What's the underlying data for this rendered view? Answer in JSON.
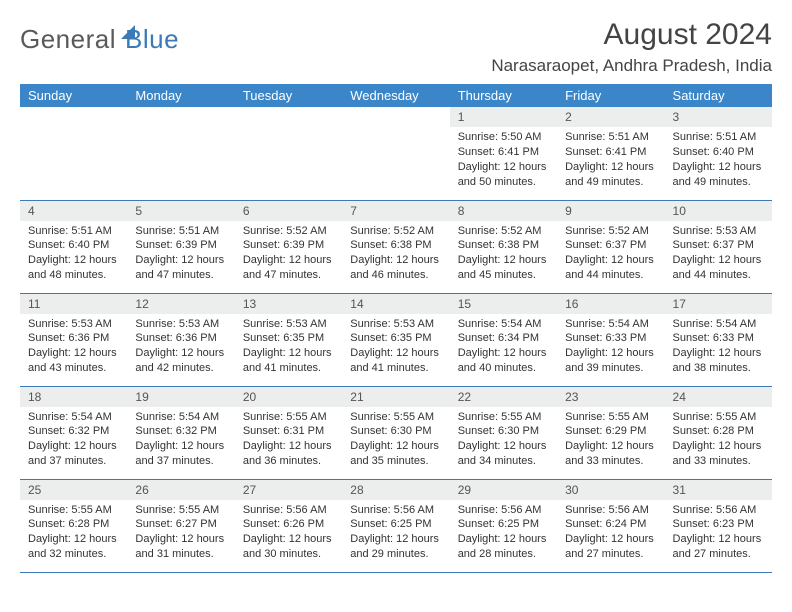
{
  "brand": {
    "part1": "General",
    "part2": "Blue"
  },
  "header": {
    "title": "August 2024",
    "location": "Narasaraopet, Andhra Pradesh, India"
  },
  "colors": {
    "accent": "#3a86c8",
    "accent_dark": "#3a7ab8",
    "daynum_bg": "#eceded",
    "text": "#333333"
  },
  "weekdays": [
    "Sunday",
    "Monday",
    "Tuesday",
    "Wednesday",
    "Thursday",
    "Friday",
    "Saturday"
  ],
  "grid": [
    [
      null,
      null,
      null,
      null,
      {
        "n": "1",
        "sr": "5:50 AM",
        "ss": "6:41 PM",
        "dlA": "12 hours",
        "dlB": "and 50 minutes."
      },
      {
        "n": "2",
        "sr": "5:51 AM",
        "ss": "6:41 PM",
        "dlA": "12 hours",
        "dlB": "and 49 minutes."
      },
      {
        "n": "3",
        "sr": "5:51 AM",
        "ss": "6:40 PM",
        "dlA": "12 hours",
        "dlB": "and 49 minutes."
      }
    ],
    [
      {
        "n": "4",
        "sr": "5:51 AM",
        "ss": "6:40 PM",
        "dlA": "12 hours",
        "dlB": "and 48 minutes."
      },
      {
        "n": "5",
        "sr": "5:51 AM",
        "ss": "6:39 PM",
        "dlA": "12 hours",
        "dlB": "and 47 minutes."
      },
      {
        "n": "6",
        "sr": "5:52 AM",
        "ss": "6:39 PM",
        "dlA": "12 hours",
        "dlB": "and 47 minutes."
      },
      {
        "n": "7",
        "sr": "5:52 AM",
        "ss": "6:38 PM",
        "dlA": "12 hours",
        "dlB": "and 46 minutes."
      },
      {
        "n": "8",
        "sr": "5:52 AM",
        "ss": "6:38 PM",
        "dlA": "12 hours",
        "dlB": "and 45 minutes."
      },
      {
        "n": "9",
        "sr": "5:52 AM",
        "ss": "6:37 PM",
        "dlA": "12 hours",
        "dlB": "and 44 minutes."
      },
      {
        "n": "10",
        "sr": "5:53 AM",
        "ss": "6:37 PM",
        "dlA": "12 hours",
        "dlB": "and 44 minutes."
      }
    ],
    [
      {
        "n": "11",
        "sr": "5:53 AM",
        "ss": "6:36 PM",
        "dlA": "12 hours",
        "dlB": "and 43 minutes."
      },
      {
        "n": "12",
        "sr": "5:53 AM",
        "ss": "6:36 PM",
        "dlA": "12 hours",
        "dlB": "and 42 minutes."
      },
      {
        "n": "13",
        "sr": "5:53 AM",
        "ss": "6:35 PM",
        "dlA": "12 hours",
        "dlB": "and 41 minutes."
      },
      {
        "n": "14",
        "sr": "5:53 AM",
        "ss": "6:35 PM",
        "dlA": "12 hours",
        "dlB": "and 41 minutes."
      },
      {
        "n": "15",
        "sr": "5:54 AM",
        "ss": "6:34 PM",
        "dlA": "12 hours",
        "dlB": "and 40 minutes."
      },
      {
        "n": "16",
        "sr": "5:54 AM",
        "ss": "6:33 PM",
        "dlA": "12 hours",
        "dlB": "and 39 minutes."
      },
      {
        "n": "17",
        "sr": "5:54 AM",
        "ss": "6:33 PM",
        "dlA": "12 hours",
        "dlB": "and 38 minutes."
      }
    ],
    [
      {
        "n": "18",
        "sr": "5:54 AM",
        "ss": "6:32 PM",
        "dlA": "12 hours",
        "dlB": "and 37 minutes."
      },
      {
        "n": "19",
        "sr": "5:54 AM",
        "ss": "6:32 PM",
        "dlA": "12 hours",
        "dlB": "and 37 minutes."
      },
      {
        "n": "20",
        "sr": "5:55 AM",
        "ss": "6:31 PM",
        "dlA": "12 hours",
        "dlB": "and 36 minutes."
      },
      {
        "n": "21",
        "sr": "5:55 AM",
        "ss": "6:30 PM",
        "dlA": "12 hours",
        "dlB": "and 35 minutes."
      },
      {
        "n": "22",
        "sr": "5:55 AM",
        "ss": "6:30 PM",
        "dlA": "12 hours",
        "dlB": "and 34 minutes."
      },
      {
        "n": "23",
        "sr": "5:55 AM",
        "ss": "6:29 PM",
        "dlA": "12 hours",
        "dlB": "and 33 minutes."
      },
      {
        "n": "24",
        "sr": "5:55 AM",
        "ss": "6:28 PM",
        "dlA": "12 hours",
        "dlB": "and 33 minutes."
      }
    ],
    [
      {
        "n": "25",
        "sr": "5:55 AM",
        "ss": "6:28 PM",
        "dlA": "12 hours",
        "dlB": "and 32 minutes."
      },
      {
        "n": "26",
        "sr": "5:55 AM",
        "ss": "6:27 PM",
        "dlA": "12 hours",
        "dlB": "and 31 minutes."
      },
      {
        "n": "27",
        "sr": "5:56 AM",
        "ss": "6:26 PM",
        "dlA": "12 hours",
        "dlB": "and 30 minutes."
      },
      {
        "n": "28",
        "sr": "5:56 AM",
        "ss": "6:25 PM",
        "dlA": "12 hours",
        "dlB": "and 29 minutes."
      },
      {
        "n": "29",
        "sr": "5:56 AM",
        "ss": "6:25 PM",
        "dlA": "12 hours",
        "dlB": "and 28 minutes."
      },
      {
        "n": "30",
        "sr": "5:56 AM",
        "ss": "6:24 PM",
        "dlA": "12 hours",
        "dlB": "and 27 minutes."
      },
      {
        "n": "31",
        "sr": "5:56 AM",
        "ss": "6:23 PM",
        "dlA": "12 hours",
        "dlB": "and 27 minutes."
      }
    ]
  ],
  "labels": {
    "sunrise": "Sunrise:",
    "sunset": "Sunset:",
    "daylight": "Daylight:"
  }
}
